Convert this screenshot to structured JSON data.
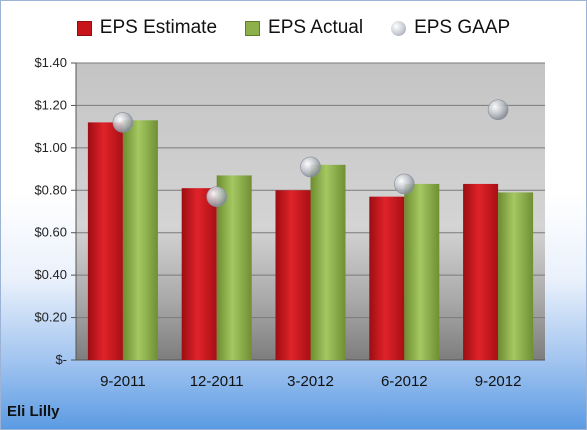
{
  "chart_data": {
    "type": "bar",
    "title": "",
    "categories": [
      "9-2011",
      "12-2011",
      "3-2012",
      "6-2012",
      "9-2012"
    ],
    "series": [
      {
        "name": "EPS Estimate",
        "type": "bar",
        "color": "#c8141b",
        "values": [
          1.12,
          0.81,
          0.8,
          0.77,
          0.83
        ]
      },
      {
        "name": "EPS Actual",
        "type": "bar",
        "color": "#8db04a",
        "values": [
          1.13,
          0.87,
          0.92,
          0.83,
          0.79
        ]
      },
      {
        "name": "EPS GAAP",
        "type": "scatter",
        "color": "#b8bcc4",
        "values": [
          1.12,
          0.77,
          0.91,
          0.83,
          1.18
        ]
      }
    ],
    "ylim": [
      0,
      1.4
    ],
    "y_ticks": [
      "$-",
      "$0.20",
      "$0.40",
      "$0.60",
      "$0.80",
      "$1.00",
      "$1.20",
      "$1.40"
    ],
    "grid": true,
    "legend": "top"
  },
  "company": "Eli Lilly"
}
